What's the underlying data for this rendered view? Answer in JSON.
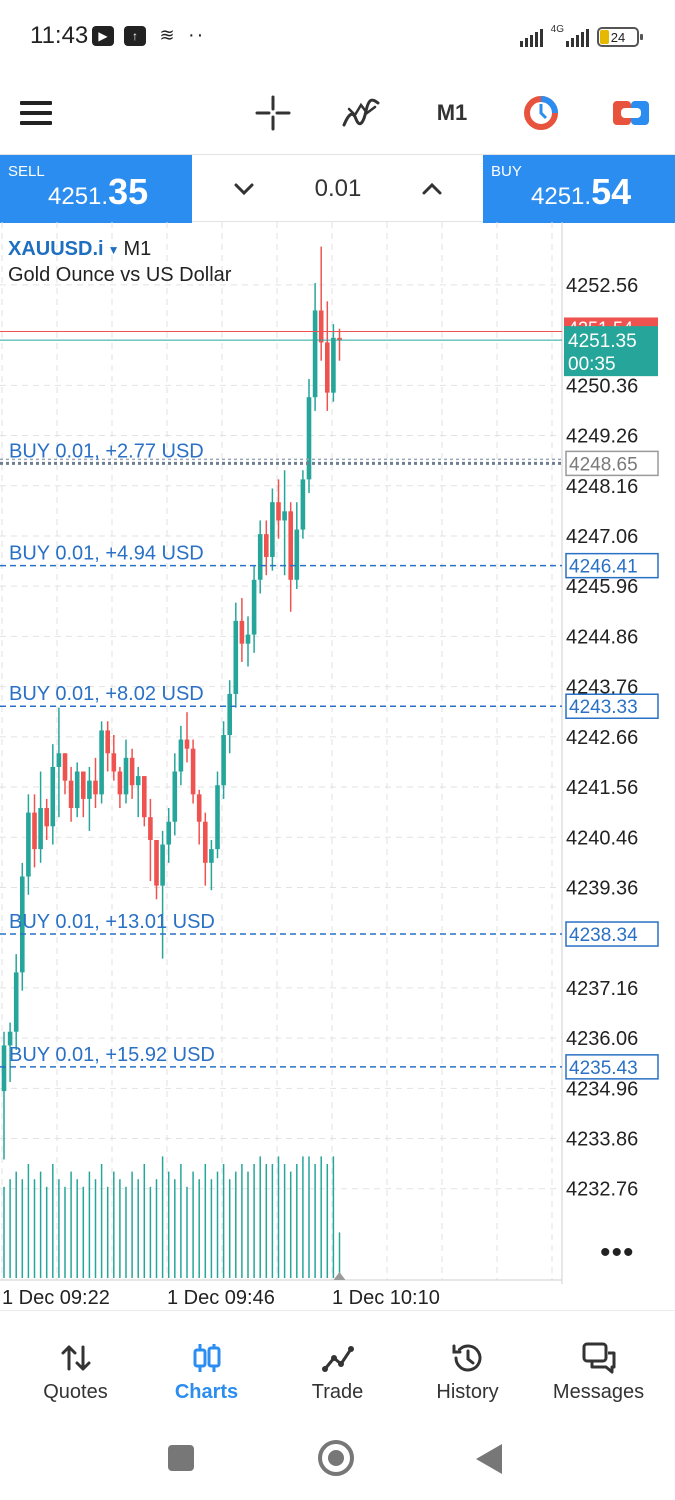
{
  "status_bar": {
    "time": "11:43",
    "network": "4G",
    "battery": "24",
    "battery_level": 0.24,
    "icons": [
      "youtube-icon",
      "upload-icon",
      "stack-icon"
    ]
  },
  "toolbar": {
    "timeframe": "M1",
    "icons": [
      "menu-icon",
      "crosshair-icon",
      "indicators-icon",
      "trade-color-icon",
      "chart-color-icon"
    ]
  },
  "order_panel": {
    "sell_label": "SELL",
    "sell_price_prefix": "4251.",
    "sell_price_big": "35",
    "buy_label": "BUY",
    "buy_price_prefix": "4251.",
    "buy_price_big": "54",
    "volume": "0.01",
    "colors": {
      "button": "#2c8df0"
    }
  },
  "chart": {
    "symbol": "XAUUSD.i",
    "timeframe": "M1",
    "description": "Gold Ounce vs US Dollar",
    "more": "•••",
    "colors": {
      "bull": "#26a69a",
      "bear": "#ef5350",
      "order_line": "#2a71c5",
      "grid": "#e2e2e2"
    }
  },
  "chart_data": {
    "type": "candlestick",
    "symbol": "XAUUSD.i",
    "timeframe": "M1",
    "ylim": [
      4231.9,
      4253.5
    ],
    "y_ticks": [
      "4252.56",
      "4250.36",
      "4249.26",
      "4248.16",
      "4247.06",
      "4245.96",
      "4244.86",
      "4243.76",
      "4242.66",
      "4241.56",
      "4240.46",
      "4239.36",
      "4237.16",
      "4236.06",
      "4234.96",
      "4233.86",
      "4232.76"
    ],
    "x_ticks": [
      "1 Dec 09:22",
      "1 Dec 09:46",
      "1 Dec 10:10"
    ],
    "bid": {
      "price": "4251.35",
      "timer": "00:35"
    },
    "ask": {
      "price": "4251.54"
    },
    "orders": [
      {
        "label": "BUY 0.01,  +2.77 USD",
        "price": 4248.65,
        "price_label": "4248.65",
        "pending": true
      },
      {
        "label": "BUY 0.01,  +4.94 USD",
        "price": 4246.41,
        "price_label": "4246.41",
        "pending": false
      },
      {
        "label": "BUY 0.01,  +8.02 USD",
        "price": 4243.33,
        "price_label": "4243.33",
        "pending": false
      },
      {
        "label": "BUY 0.01,  +13.01 USD",
        "price": 4238.34,
        "price_label": "4238.34",
        "pending": false
      },
      {
        "label": "BUY 0.01,  +15.92 USD",
        "price": 4235.43,
        "price_label": "4235.43",
        "pending": false
      }
    ],
    "ohlc": [
      [
        4234.9,
        4236.2,
        4233.4,
        4235.9
      ],
      [
        4235.9,
        4236.4,
        4235.1,
        4236.2
      ],
      [
        4236.2,
        4237.9,
        4235.8,
        4237.5
      ],
      [
        4237.5,
        4239.9,
        4237.1,
        4239.6
      ],
      [
        4239.6,
        4241.4,
        4239.2,
        4241.0
      ],
      [
        4241.0,
        4241.4,
        4239.8,
        4240.2
      ],
      [
        4240.2,
        4241.9,
        4239.9,
        4241.1
      ],
      [
        4241.1,
        4241.3,
        4240.4,
        4240.7
      ],
      [
        4240.7,
        4242.5,
        4240.3,
        4242.0
      ],
      [
        4242.0,
        4243.3,
        4240.9,
        4242.3
      ],
      [
        4242.3,
        4242.3,
        4241.4,
        4241.7
      ],
      [
        4241.7,
        4242.0,
        4240.8,
        4241.1
      ],
      [
        4241.1,
        4242.1,
        4240.9,
        4241.9
      ],
      [
        4241.9,
        4241.9,
        4240.9,
        4241.3
      ],
      [
        4241.3,
        4242.0,
        4240.6,
        4241.7
      ],
      [
        4241.7,
        4242.2,
        4241.1,
        4241.4
      ],
      [
        4241.4,
        4243.0,
        4241.2,
        4242.8
      ],
      [
        4242.8,
        4243.0,
        4241.9,
        4242.3
      ],
      [
        4242.3,
        4242.7,
        4241.7,
        4241.9
      ],
      [
        4241.9,
        4242.0,
        4241.1,
        4241.4
      ],
      [
        4241.4,
        4242.6,
        4241.2,
        4242.2
      ],
      [
        4242.2,
        4242.4,
        4241.3,
        4241.6
      ],
      [
        4241.6,
        4242.0,
        4240.9,
        4241.8
      ],
      [
        4241.8,
        4241.8,
        4240.7,
        4240.9
      ],
      [
        4240.9,
        4241.3,
        4239.5,
        4240.4
      ],
      [
        4240.4,
        4240.4,
        4239.1,
        4239.4
      ],
      [
        4239.4,
        4240.6,
        4237.8,
        4240.3
      ],
      [
        4240.3,
        4241.1,
        4239.9,
        4240.8
      ],
      [
        4240.8,
        4242.3,
        4240.5,
        4241.9
      ],
      [
        4241.9,
        4242.9,
        4241.6,
        4242.6
      ],
      [
        4242.6,
        4243.2,
        4242.1,
        4242.4
      ],
      [
        4242.4,
        4242.6,
        4241.2,
        4241.4
      ],
      [
        4241.4,
        4241.5,
        4240.3,
        4240.8
      ],
      [
        4240.8,
        4241.0,
        4239.4,
        4239.9
      ],
      [
        4239.9,
        4240.4,
        4239.3,
        4240.2
      ],
      [
        4240.2,
        4241.9,
        4240.0,
        4241.6
      ],
      [
        4241.6,
        4243.0,
        4241.3,
        4242.7
      ],
      [
        4242.7,
        4243.9,
        4242.3,
        4243.6
      ],
      [
        4243.6,
        4245.6,
        4243.3,
        4245.2
      ],
      [
        4245.2,
        4245.7,
        4244.3,
        4244.7
      ],
      [
        4244.7,
        4245.3,
        4244.2,
        4244.9
      ],
      [
        4244.9,
        4246.4,
        4244.5,
        4246.1
      ],
      [
        4246.1,
        4247.4,
        4245.8,
        4247.1
      ],
      [
        4247.1,
        4247.4,
        4246.2,
        4246.6
      ],
      [
        4246.6,
        4248.1,
        4246.3,
        4247.8
      ],
      [
        4247.8,
        4248.3,
        4247.0,
        4247.4
      ],
      [
        4247.4,
        4248.5,
        4246.2,
        4247.6
      ],
      [
        4247.6,
        4247.8,
        4245.4,
        4246.1
      ],
      [
        4246.1,
        4247.8,
        4245.9,
        4247.2
      ],
      [
        4247.2,
        4248.5,
        4247.0,
        4248.3
      ],
      [
        4248.3,
        4250.5,
        4248.0,
        4250.1
      ],
      [
        4250.1,
        4252.6,
        4249.8,
        4252.0
      ],
      [
        4252.0,
        4253.4,
        4250.9,
        4251.3
      ],
      [
        4251.3,
        4252.2,
        4249.8,
        4250.2
      ],
      [
        4250.2,
        4251.7,
        4250.0,
        4251.4
      ],
      [
        4251.4,
        4251.6,
        4250.9,
        4251.35
      ]
    ],
    "volume_scale": [
      12,
      13,
      14,
      13,
      15,
      13,
      14,
      12,
      15,
      13,
      12,
      14,
      13,
      12,
      14,
      13,
      15,
      12,
      14,
      13,
      12,
      14,
      13,
      15,
      12,
      13,
      16,
      14,
      13,
      15,
      12,
      14,
      13,
      15,
      13,
      14,
      15,
      13,
      14,
      15,
      14,
      15,
      16,
      15,
      15,
      16,
      15,
      14,
      15,
      16,
      16,
      15,
      16,
      15,
      16,
      6
    ]
  },
  "bottom_nav": {
    "items": [
      {
        "label": "Quotes",
        "icon": "swap-arrows-icon"
      },
      {
        "label": "Charts",
        "icon": "candles-icon",
        "active": true
      },
      {
        "label": "Trade",
        "icon": "trend-line-icon"
      },
      {
        "label": "History",
        "icon": "history-clock-icon"
      },
      {
        "label": "Messages",
        "icon": "messages-icon"
      }
    ]
  }
}
